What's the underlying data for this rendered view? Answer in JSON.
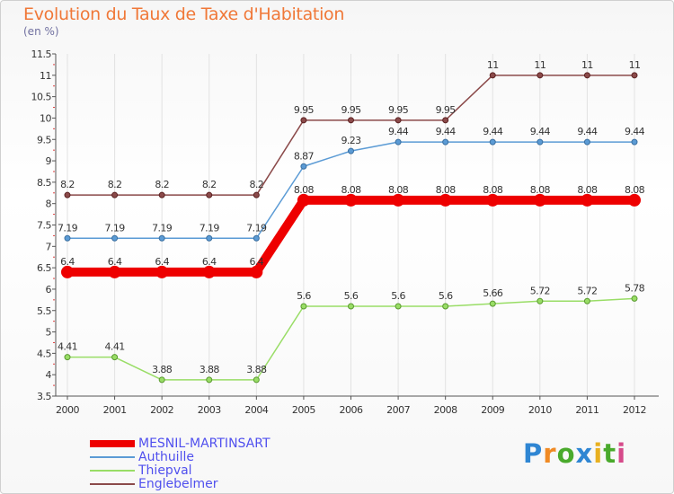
{
  "title": "Evolution du Taux de Taxe d'Habitation",
  "subtitle": "(en %)",
  "logo": {
    "text": "Proxiti",
    "letters": [
      "P",
      "r",
      "o",
      "x",
      "i",
      "t",
      "i"
    ]
  },
  "chart_data": {
    "type": "line",
    "title": "Evolution du Taux de Taxe d'Habitation",
    "ylabel": "(en %)",
    "xlabel": "",
    "x": [
      "2000",
      "2001",
      "2002",
      "2003",
      "2004",
      "2005",
      "2006",
      "2007",
      "2008",
      "2009",
      "2010",
      "2011",
      "2012"
    ],
    "ylim": [
      3.5,
      11.5
    ],
    "yticks": [
      3.5,
      4,
      4.5,
      5,
      5.5,
      6,
      6.5,
      7,
      7.5,
      8,
      8.5,
      9,
      9.5,
      10,
      10.5,
      11,
      11.5
    ],
    "ytick_labels": [
      "3.5",
      "4",
      "4.5",
      "5",
      "5.5",
      "6",
      "6.5",
      "7",
      "7.5",
      "8",
      "8.5",
      "9",
      "9.5",
      "10",
      "10.5",
      "11",
      "11.5"
    ],
    "grid": "vertical",
    "legend_position": "bottom-left",
    "series": [
      {
        "name": "MESNIL-MARTINSART",
        "color": "#ee0000",
        "values": [
          6.4,
          6.4,
          6.4,
          6.4,
          6.4,
          8.08,
          8.08,
          8.08,
          8.08,
          8.08,
          8.08,
          8.08,
          8.08
        ],
        "labels": [
          "6.4",
          "6.4",
          "6.4",
          "6.4",
          "6.4",
          "8.08",
          "8.08",
          "8.08",
          "8.08",
          "8.08",
          "8.08",
          "8.08",
          "8.08"
        ]
      },
      {
        "name": "Authuille",
        "color": "#5b9bd5",
        "values": [
          7.19,
          7.19,
          7.19,
          7.19,
          7.19,
          8.87,
          9.23,
          9.44,
          9.44,
          9.44,
          9.44,
          9.44,
          9.44
        ],
        "labels": [
          "7.19",
          "7.19",
          "7.19",
          "7.19",
          "7.19",
          "8.87",
          "9.23",
          "9.44",
          "9.44",
          "9.44",
          "9.44",
          "9.44",
          "9.44"
        ]
      },
      {
        "name": "Thiepval",
        "color": "#99dd66",
        "values": [
          4.41,
          4.41,
          3.88,
          3.88,
          3.88,
          5.6,
          5.6,
          5.6,
          5.6,
          5.66,
          5.72,
          5.72,
          5.78
        ],
        "labels": [
          "4.41",
          "4.41",
          "3.88",
          "3.88",
          "3.88",
          "5.6",
          "5.6",
          "5.6",
          "5.6",
          "5.66",
          "5.72",
          "5.72",
          "5.78"
        ]
      },
      {
        "name": "Englebelmer",
        "color": "#8b4a4a",
        "values": [
          8.2,
          8.2,
          8.2,
          8.2,
          8.2,
          9.95,
          9.95,
          9.95,
          9.95,
          11,
          11,
          11,
          11
        ],
        "labels": [
          "8.2",
          "8.2",
          "8.2",
          "8.2",
          "8.2",
          "9.95",
          "9.95",
          "9.95",
          "9.95",
          "11",
          "11",
          "11",
          "11"
        ]
      }
    ]
  }
}
